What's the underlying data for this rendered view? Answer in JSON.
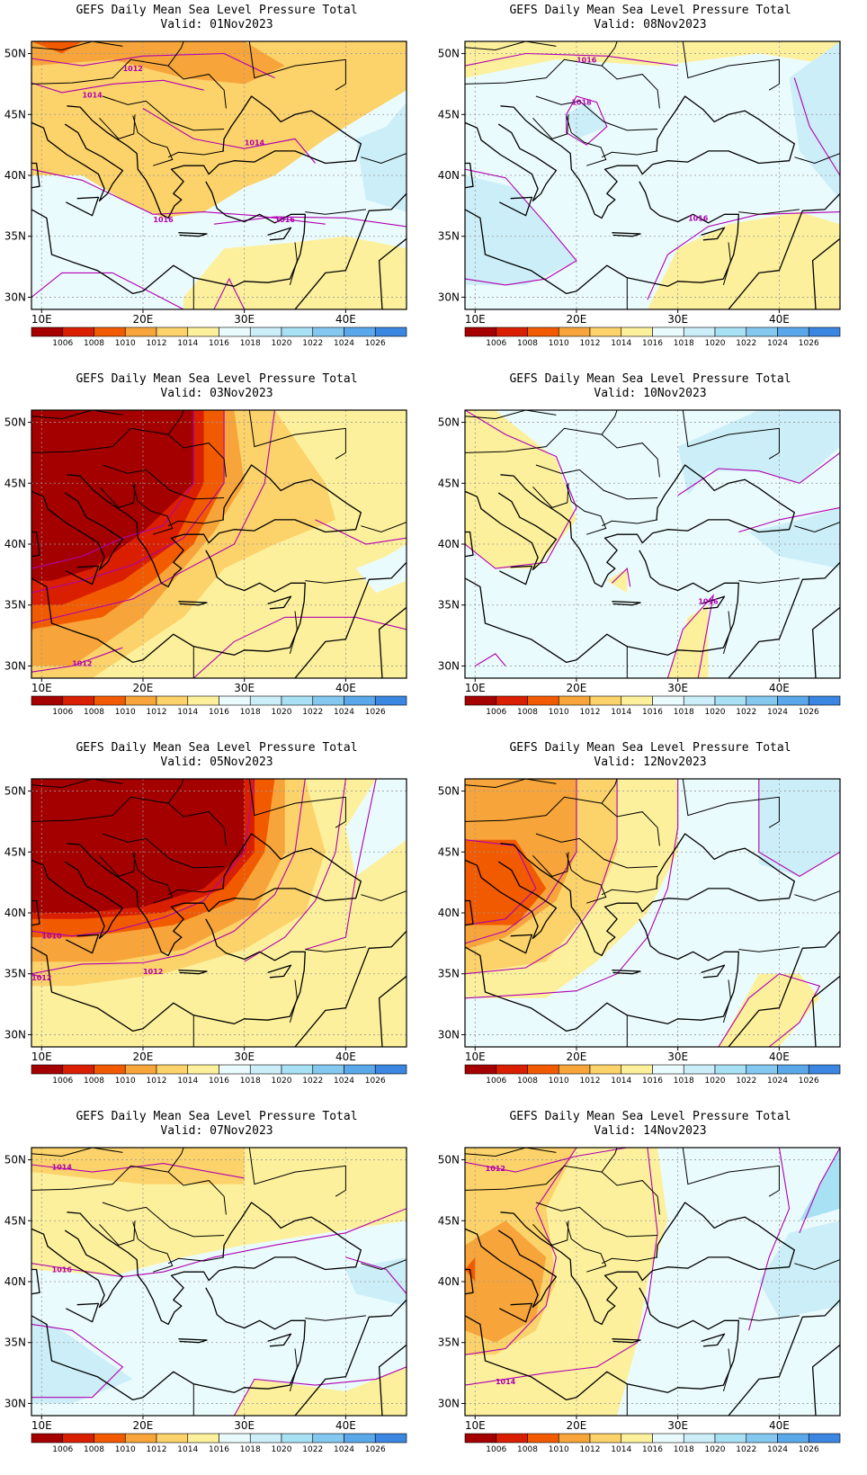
{
  "title": "GEFS Daily Mean Sea Level Pressure Total",
  "lat_ticks": [
    "50N",
    "45N",
    "40N",
    "35N",
    "30N"
  ],
  "lon_ticks": [
    "10E",
    "20E",
    "30E",
    "40E"
  ],
  "colorbar": {
    "labels": [
      "1006",
      "1008",
      "1010",
      "1012",
      "1014",
      "1016",
      "1018",
      "1020",
      "1022",
      "1024",
      "1026"
    ],
    "colors": [
      "#a50000",
      "#d91f00",
      "#f25a00",
      "#f7a53a",
      "#fcd26a",
      "#fdf09c",
      "#eafbfd",
      "#cceef8",
      "#a8e0f4",
      "#84c8f0",
      "#5aa8ea",
      "#3a86e0"
    ]
  },
  "panels": [
    {
      "valid": "Valid: 01Nov2023",
      "contours": [
        "1012",
        "1014",
        "1014",
        "1016",
        "1016"
      ]
    },
    {
      "valid": "Valid: 08Nov2023",
      "contours": [
        "1016",
        "1018",
        "1016"
      ]
    },
    {
      "valid": "Valid: 03Nov2023",
      "contours": [
        "1012"
      ]
    },
    {
      "valid": "Valid: 10Nov2023",
      "contours": [
        "1016"
      ]
    },
    {
      "valid": "Valid: 05Nov2023",
      "contours": [
        "1010",
        "1012",
        "1012"
      ]
    },
    {
      "valid": "Valid: 12Nov2023",
      "contours": []
    },
    {
      "valid": "Valid: 07Nov2023",
      "contours": [
        "1014",
        "1016"
      ]
    },
    {
      "valid": "Valid: 14Nov2023",
      "contours": [
        "1012",
        "1014"
      ]
    }
  ]
}
